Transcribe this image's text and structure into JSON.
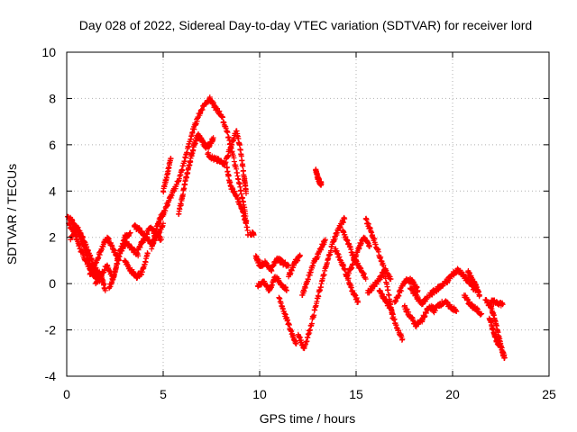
{
  "chart_data": {
    "type": "scatter",
    "title": "Day 028 of 2022, Sidereal Day-to-day VTEC variation (SDTVAR) for receiver lord",
    "xlabel": "GPS time / hours",
    "ylabel": "SDTVAR / TECUs",
    "xlim": [
      0,
      25
    ],
    "ylim": [
      -4,
      10
    ],
    "xticks": [
      "0",
      "5",
      "10",
      "15",
      "20",
      "25"
    ],
    "yticks": [
      "-4",
      "-2",
      "0",
      "2",
      "4",
      "6",
      "8",
      "10"
    ],
    "grid": true,
    "marker": "+",
    "series": [
      {
        "name": "SDTVAR",
        "color": "#ff0000",
        "note": "dense overlapping satellite arcs; coarse trace of visible arcs",
        "arcs": [
          [
            [
              0.05,
              2.9
            ],
            [
              0.3,
              2.7
            ],
            [
              0.6,
              2.2
            ],
            [
              0.9,
              1.6
            ],
            [
              1.2,
              0.9
            ],
            [
              1.5,
              0.4
            ],
            [
              1.7,
              0.1
            ]
          ],
          [
            [
              0.1,
              2.6
            ],
            [
              0.4,
              2.2
            ],
            [
              0.7,
              1.5
            ],
            [
              1.0,
              1.0
            ],
            [
              1.3,
              0.5
            ],
            [
              1.6,
              0.2
            ]
          ],
          [
            [
              0.2,
              1.9
            ],
            [
              0.5,
              2.5
            ],
            [
              0.8,
              2.0
            ],
            [
              1.1,
              1.4
            ],
            [
              1.4,
              0.8
            ],
            [
              1.8,
              0.3
            ],
            [
              2.0,
              -0.3
            ]
          ],
          [
            [
              1.2,
              0.4
            ],
            [
              1.5,
              0.9
            ],
            [
              1.8,
              1.5
            ],
            [
              2.1,
              2.0
            ],
            [
              2.4,
              1.5
            ],
            [
              2.7,
              1.0
            ]
          ],
          [
            [
              1.5,
              0.0
            ],
            [
              1.8,
              0.4
            ],
            [
              2.1,
              0.8
            ],
            [
              2.4,
              0.2
            ],
            [
              2.7,
              1.2
            ],
            [
              3.0,
              2.0
            ],
            [
              3.3,
              2.2
            ]
          ],
          [
            [
              2.2,
              -0.2
            ],
            [
              2.5,
              0.5
            ],
            [
              2.8,
              1.4
            ],
            [
              3.1,
              1.8
            ],
            [
              3.4,
              1.5
            ],
            [
              3.7,
              1.2
            ]
          ],
          [
            [
              3.0,
              1.0
            ],
            [
              3.3,
              0.6
            ],
            [
              3.6,
              0.3
            ],
            [
              3.9,
              0.5
            ],
            [
              4.2,
              1.3
            ]
          ],
          [
            [
              3.5,
              2.5
            ],
            [
              3.8,
              2.3
            ],
            [
              4.1,
              2.0
            ],
            [
              4.4,
              1.7
            ],
            [
              4.7,
              2.1
            ],
            [
              5.0,
              2.6
            ]
          ],
          [
            [
              3.7,
              1.5
            ],
            [
              4.0,
              1.9
            ],
            [
              4.3,
              2.4
            ],
            [
              4.6,
              2.2
            ],
            [
              4.9,
              1.9
            ]
          ],
          [
            [
              4.4,
              1.5
            ],
            [
              4.6,
              2.2
            ],
            [
              4.8,
              2.8
            ],
            [
              5.0,
              3.0
            ]
          ],
          [
            [
              5.0,
              3.0
            ],
            [
              5.3,
              3.6
            ],
            [
              5.6,
              4.1
            ],
            [
              5.9,
              4.7
            ],
            [
              6.2,
              5.6
            ],
            [
              6.5,
              6.5
            ],
            [
              6.8,
              7.2
            ],
            [
              7.1,
              7.7
            ],
            [
              7.4,
              8.0
            ],
            [
              7.7,
              7.6
            ],
            [
              8.0,
              7.3
            ],
            [
              8.3,
              6.6
            ],
            [
              8.6,
              5.6
            ],
            [
              8.9,
              4.5
            ],
            [
              9.2,
              3.3
            ],
            [
              9.4,
              2.1
            ]
          ],
          [
            [
              5.0,
              4.0
            ],
            [
              5.2,
              4.7
            ],
            [
              5.4,
              5.4
            ]
          ],
          [
            [
              5.8,
              3.0
            ],
            [
              6.0,
              3.8
            ],
            [
              6.2,
              4.6
            ],
            [
              6.4,
              5.3
            ],
            [
              6.6,
              6.0
            ],
            [
              6.8,
              6.4
            ],
            [
              7.0,
              6.2
            ],
            [
              7.2,
              5.9
            ],
            [
              7.4,
              6.0
            ],
            [
              7.6,
              6.3
            ]
          ],
          [
            [
              7.3,
              5.6
            ],
            [
              7.6,
              5.4
            ],
            [
              7.9,
              5.3
            ],
            [
              8.2,
              5.2
            ],
            [
              8.5,
              5.9
            ],
            [
              8.8,
              6.6
            ],
            [
              9.0,
              5.8
            ],
            [
              9.2,
              4.6
            ],
            [
              9.3,
              3.9
            ]
          ],
          [
            [
              8.3,
              5.0
            ],
            [
              8.5,
              4.2
            ],
            [
              8.8,
              3.8
            ],
            [
              9.1,
              3.2
            ],
            [
              9.3,
              2.6
            ]
          ],
          [
            [
              9.5,
              2.2
            ],
            [
              9.7,
              2.1
            ]
          ],
          [
            [
              9.8,
              1.2
            ],
            [
              10.0,
              0.8
            ],
            [
              10.3,
              0.9
            ],
            [
              10.6,
              0.6
            ],
            [
              10.9,
              1.1
            ],
            [
              11.2,
              0.9
            ],
            [
              11.5,
              0.8
            ]
          ],
          [
            [
              9.9,
              -0.1
            ],
            [
              10.2,
              0.1
            ],
            [
              10.5,
              -0.3
            ],
            [
              10.8,
              0.3
            ],
            [
              11.1,
              0.0
            ],
            [
              11.4,
              -0.3
            ]
          ],
          [
            [
              11.0,
              -0.6
            ],
            [
              11.3,
              -1.3
            ],
            [
              11.6,
              -2.0
            ],
            [
              11.9,
              -2.6
            ]
          ],
          [
            [
              11.5,
              0.3
            ],
            [
              11.8,
              0.9
            ],
            [
              12.1,
              1.2
            ]
          ],
          [
            [
              12.0,
              -2.2
            ],
            [
              12.3,
              -2.8
            ],
            [
              12.6,
              -2.0
            ],
            [
              12.9,
              -1.0
            ],
            [
              13.2,
              0.0
            ],
            [
              13.5,
              0.9
            ],
            [
              13.8,
              1.8
            ],
            [
              14.1,
              2.4
            ],
            [
              14.4,
              2.8
            ]
          ],
          [
            [
              12.2,
              -0.5
            ],
            [
              12.5,
              0.2
            ],
            [
              12.8,
              0.9
            ],
            [
              13.1,
              1.4
            ],
            [
              13.4,
              1.9
            ]
          ],
          [
            [
              12.9,
              4.9
            ],
            [
              13.0,
              4.6
            ],
            [
              13.1,
              4.4
            ],
            [
              13.2,
              4.3
            ]
          ],
          [
            [
              13.9,
              1.5
            ],
            [
              14.2,
              1.0
            ],
            [
              14.5,
              0.4
            ],
            [
              14.8,
              -0.3
            ],
            [
              15.1,
              -0.8
            ]
          ],
          [
            [
              14.3,
              2.3
            ],
            [
              14.6,
              1.7
            ],
            [
              14.9,
              1.1
            ],
            [
              15.2,
              0.7
            ],
            [
              15.5,
              0.2
            ]
          ],
          [
            [
              14.5,
              0.3
            ],
            [
              14.8,
              0.8
            ],
            [
              15.1,
              1.5
            ],
            [
              15.4,
              2.0
            ],
            [
              15.7,
              1.6
            ]
          ],
          [
            [
              15.5,
              2.8
            ],
            [
              15.8,
              2.2
            ],
            [
              16.1,
              1.5
            ],
            [
              16.4,
              0.8
            ],
            [
              16.7,
              -0.5
            ],
            [
              16.9,
              -1.5
            ]
          ],
          [
            [
              15.6,
              -0.4
            ],
            [
              15.9,
              -0.1
            ],
            [
              16.2,
              0.2
            ],
            [
              16.5,
              0.6
            ],
            [
              16.8,
              0.2
            ]
          ],
          [
            [
              16.2,
              -0.3
            ],
            [
              16.5,
              -0.7
            ],
            [
              16.8,
              -1.1
            ],
            [
              17.1,
              -1.9
            ],
            [
              17.4,
              -2.4
            ]
          ],
          [
            [
              17.0,
              -0.8
            ],
            [
              17.3,
              -0.3
            ],
            [
              17.6,
              0.2
            ],
            [
              17.9,
              0.1
            ],
            [
              18.2,
              -0.3
            ]
          ],
          [
            [
              17.5,
              -1.0
            ],
            [
              17.8,
              -1.4
            ],
            [
              18.1,
              -1.8
            ],
            [
              18.4,
              -1.6
            ],
            [
              18.7,
              -1.1
            ],
            [
              19.0,
              -1.0
            ]
          ],
          [
            [
              17.8,
              -0.2
            ],
            [
              18.1,
              -0.5
            ],
            [
              18.4,
              -0.9
            ],
            [
              18.7,
              -0.6
            ]
          ],
          [
            [
              18.8,
              -0.5
            ],
            [
              19.1,
              -0.3
            ],
            [
              19.4,
              -0.1
            ],
            [
              19.7,
              0.1
            ],
            [
              20.0,
              0.4
            ],
            [
              20.3,
              0.6
            ],
            [
              20.6,
              0.3
            ],
            [
              20.9,
              0.0
            ],
            [
              21.2,
              -0.3
            ]
          ],
          [
            [
              19.0,
              -1.2
            ],
            [
              19.3,
              -0.9
            ],
            [
              19.6,
              -0.8
            ],
            [
              19.9,
              -1.0
            ],
            [
              20.2,
              -1.2
            ]
          ],
          [
            [
              20.6,
              -0.5
            ],
            [
              20.9,
              -0.9
            ],
            [
              21.2,
              -1.1
            ],
            [
              21.5,
              -1.3
            ]
          ],
          [
            [
              20.8,
              0.5
            ],
            [
              21.0,
              0.2
            ],
            [
              21.2,
              -0.1
            ],
            [
              21.4,
              -0.5
            ]
          ],
          [
            [
              21.7,
              -0.7
            ],
            [
              22.0,
              -1.0
            ],
            [
              22.2,
              -1.6
            ],
            [
              22.4,
              -2.3
            ],
            [
              22.6,
              -3.0
            ],
            [
              22.7,
              -3.2
            ]
          ],
          [
            [
              21.9,
              -1.5
            ],
            [
              22.1,
              -2.0
            ],
            [
              22.3,
              -2.5
            ],
            [
              22.5,
              -2.7
            ]
          ],
          [
            [
              22.0,
              -0.8
            ],
            [
              22.3,
              -0.8
            ],
            [
              22.6,
              -0.9
            ]
          ]
        ]
      }
    ]
  }
}
